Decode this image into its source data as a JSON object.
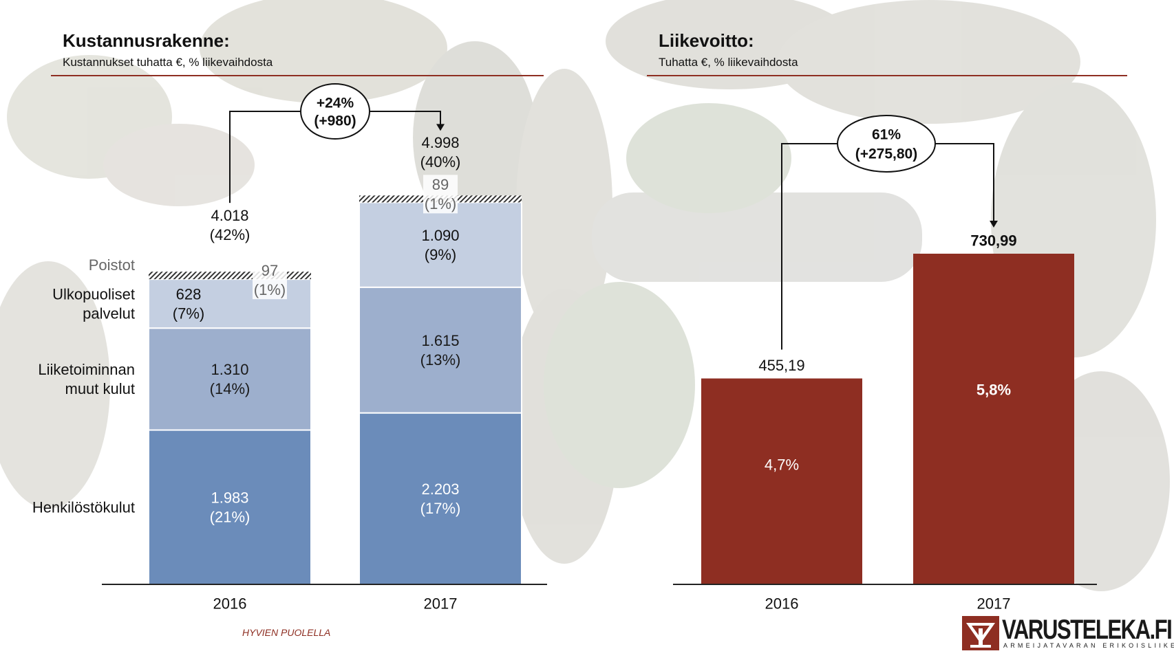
{
  "left_panel": {
    "title": "Kustannusrakenne:",
    "subtitle": "Kustannukset tuhatta €, % liikevaihdosta"
  },
  "right_panel": {
    "title": "Liikevoitto:",
    "subtitle": "Tuhatta €, % liikevaihdosta"
  },
  "footer": {
    "tagline": "HYVIEN PUOLELLA"
  },
  "logo": {
    "name": "VARUSTELEKA.FI",
    "tagline": "ARMEIJATAVARAN ERIKOISLIIKE"
  },
  "colors": {
    "henkilosto": "#6b8cba",
    "liiketoiminta": "#9dafcd",
    "ulkopuoliset": "#c4cfe1",
    "profit": "#8e2e22",
    "accent_rule": "#8e2e22"
  },
  "chart_data": [
    {
      "type": "bar",
      "stacked": true,
      "categories": [
        "2016",
        "2017"
      ],
      "series": [
        {
          "name": "Henkilöstökulut",
          "values": [
            1983,
            2203
          ],
          "labels": [
            "1.983\n(21%)",
            "2.203\n(17%)"
          ]
        },
        {
          "name": "Liiketoiminnan muut kulut",
          "values": [
            1310,
            1615
          ],
          "labels": [
            "1.310\n(14%)",
            "1.615\n(13%)"
          ]
        },
        {
          "name": "Ulkopuoliset palvelut",
          "values": [
            628,
            1090
          ],
          "labels": [
            "628\n(7%)",
            "1.090\n(9%)"
          ]
        },
        {
          "name": "Poistot",
          "values": [
            97,
            89
          ],
          "labels": [
            "97\n(1%)",
            "89\n(1%)"
          ]
        }
      ],
      "totals": [
        4018,
        4998
      ],
      "total_labels": [
        "4.018\n(42%)",
        "4.998\n(40%)"
      ],
      "change_label": "+24%\n(+980)",
      "series_labels": [
        "Henkilöstökulut",
        "Liiketoiminnan\nmuut kulut",
        "Ulkopuoliset\npalvelut",
        "Poistot"
      ]
    },
    {
      "type": "bar",
      "categories": [
        "2016",
        "2017"
      ],
      "values": [
        455.19,
        730.99
      ],
      "value_labels": [
        "455,19",
        "730,99"
      ],
      "inner_labels": [
        "4,7%",
        "5,8%"
      ],
      "change_label": "61%\n(+275,80)"
    }
  ]
}
